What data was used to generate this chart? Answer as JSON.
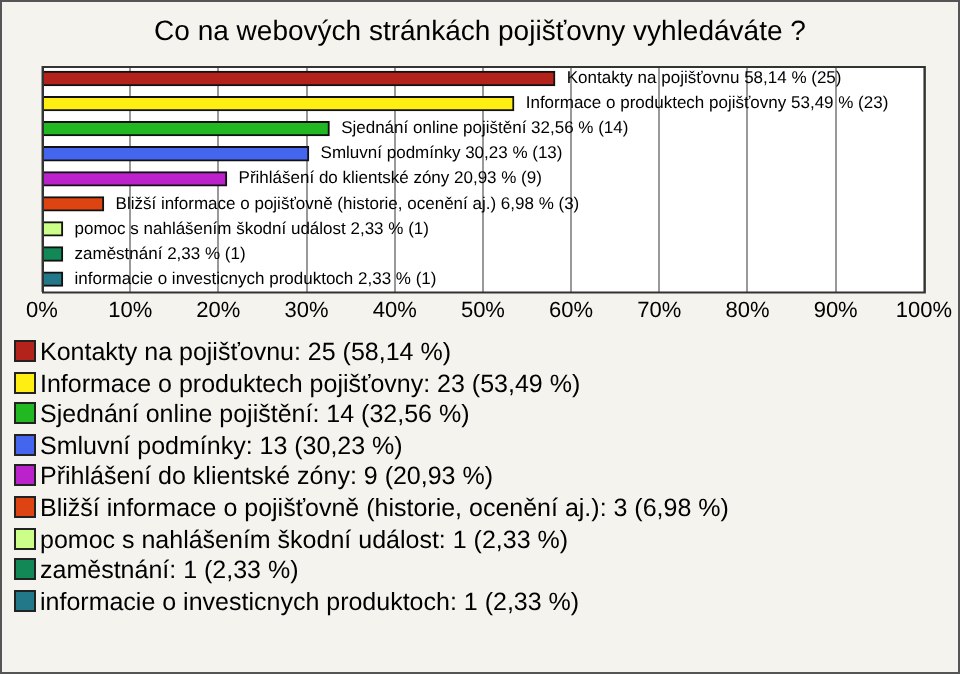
{
  "chart_data": {
    "type": "bar",
    "orientation": "horizontal",
    "title": "Co na webových stránkách pojišťovny vyhledáváte ?",
    "categories": [
      "Kontakty na pojišťovnu",
      "Informace o produktech pojišťovny",
      "Sjednání online pojištění",
      "Smluvní podmínky",
      "Přihlášení do klientské zóny",
      "Bližší informace o pojišťovně (historie, ocenění aj.)",
      "pomoc s nahlášením škodní událost",
      "zaměstnání",
      "informacie o investicnych produktoch"
    ],
    "values": [
      58.14,
      53.49,
      32.56,
      30.23,
      20.93,
      6.98,
      2.33,
      2.33,
      2.33
    ],
    "value_labels": [
      "58,14 % (25)",
      "53,49 % (23)",
      "32,56 % (14)",
      "30,23 % (13)",
      "20,93 % (9)",
      "6,98 % (3)",
      "2,33 % (1)",
      "2,33 % (1)",
      "2,33 % (1)"
    ],
    "colors": [
      "#b3231b",
      "#ffee11",
      "#22b822",
      "#4466ee",
      "#bb22cc",
      "#dd4411",
      "#ccff88",
      "#118855",
      "#227788"
    ],
    "xlim": [
      0,
      100
    ],
    "xticks": [
      {
        "value": 0,
        "label": "0%"
      },
      {
        "value": 10,
        "label": "10%"
      },
      {
        "value": 20,
        "label": "20%"
      },
      {
        "value": 30,
        "label": "30%"
      },
      {
        "value": 40,
        "label": "40%"
      },
      {
        "value": 50,
        "label": "50%"
      },
      {
        "value": 60,
        "label": "60%"
      },
      {
        "value": 70,
        "label": "70%"
      },
      {
        "value": 80,
        "label": "80%"
      },
      {
        "value": 90,
        "label": "90%"
      },
      {
        "value": 100,
        "label": "100%"
      }
    ],
    "grid": "x",
    "tick_labels": "x",
    "annotations": [
      "Kontakty na pojišťovnu: 25 (58,14 %)",
      "Informace o produktech pojišťovny: 23 (53,49 %)",
      "Sjednání online pojištění: 14 (32,56 %)",
      "Smluvní podmínky: 13 (30,23 %)",
      "Přihlášení do klientské zóny: 9 (20,93 %)",
      "Bližší informace o pojišťovně (historie, ocenění aj.): 3 (6,98 %)",
      "pomoc s nahlášením škodní událost: 1 (2,33 %)",
      "zaměstnání: 1 (2,33 %)",
      "informacie o investicnych produktoch: 1 (2,33 %)"
    ]
  }
}
